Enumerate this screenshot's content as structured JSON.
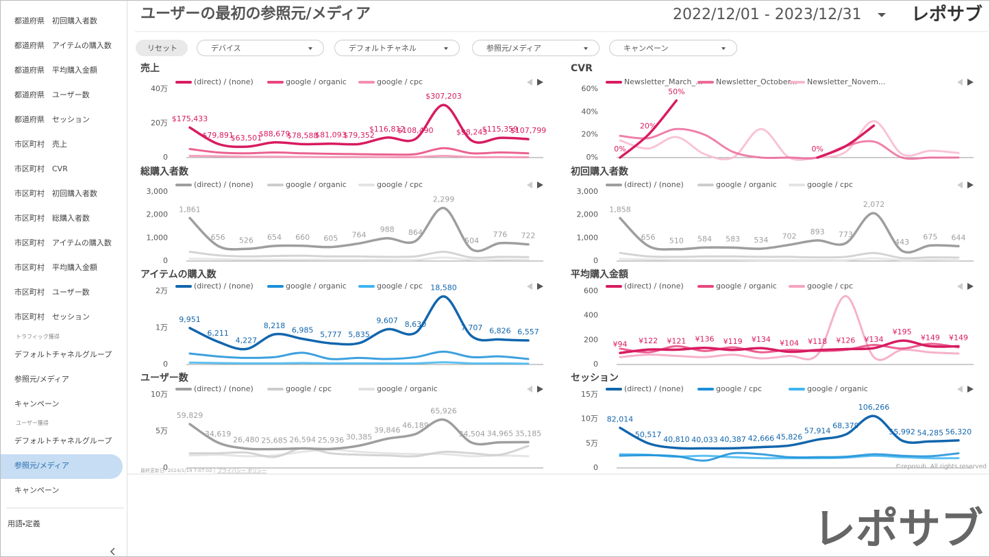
{
  "header": {
    "title": "ユーザーの最初の参照元/メディア",
    "date_range": "2022/12/01 - 2023/12/31",
    "logo": "レポサブ"
  },
  "sidebar": {
    "items": [
      "都道府県　初回購入者数",
      "都道府県　アイテムの購入数",
      "都道府県　平均購入金額",
      "都道府県　ユーザー数",
      "都道府県　セッション",
      "市区町村　売上",
      "市区町村　CVR",
      "市区町村　初回購入者数",
      "市区町村　総購入者数",
      "市区町村　アイテムの購入数",
      "市区町村　平均購入金額",
      "市区町村　ユーザー数",
      "市区町村　セッション"
    ],
    "sections": [
      {
        "title": "トラフィック獲得",
        "items": [
          "デフォルトチャネルグループ",
          "参照元/メディア",
          "キャンペーン"
        ]
      },
      {
        "title": "ユーザー獲得",
        "items": [
          "デフォルトチャネルグループ",
          "参照元/メディア",
          "キャンペーン"
        ]
      }
    ],
    "footer": "用語・定義"
  },
  "filters": {
    "reset": "リセット",
    "dropdowns": [
      "デバイス",
      "デフォルトチャネル",
      "参照元/メディア",
      "キャンペーン"
    ]
  },
  "chart_data": [
    {
      "type": "line",
      "title": "売上",
      "ylim": [
        0,
        400000
      ],
      "yticks": [
        0,
        {
          "value": 200000,
          "label": "20万"
        },
        {
          "value": 400000,
          "label": "40万"
        }
      ],
      "grid": false,
      "series": [
        {
          "name": "(direct) / (none)",
          "color": "#d81b60",
          "values": [
            175433,
            79891,
            63501,
            88679,
            78588,
            81093,
            79352,
            116812,
            108490,
            307203,
            98243,
            115359,
            107799
          ],
          "value_labels": [
            "$175,433",
            "$79,891",
            "$63,501",
            "$88,679",
            "$78,588",
            "$81,093",
            "$79,352",
            "$116,812",
            "$108,490",
            "$307,203",
            "$98,243",
            "$115,359",
            "$107,799"
          ]
        },
        {
          "name": "google / organic",
          "color": "#e8457f",
          "values": [
            50000,
            30000,
            25000,
            30000,
            25000,
            22000,
            20000,
            18000,
            20000,
            55000,
            25000,
            30000,
            25000
          ]
        },
        {
          "name": "google / cpc",
          "color": "#f48fb1",
          "values": [
            10000,
            8000,
            5000,
            5000,
            4000,
            3000,
            3000,
            3000,
            3000,
            10000,
            3000,
            3000,
            2000
          ]
        }
      ]
    },
    {
      "type": "line",
      "title": "CVR",
      "ylim": [
        0,
        60
      ],
      "yticks": [
        {
          "value": 0,
          "label": "0%"
        },
        {
          "value": 20,
          "label": "20%"
        },
        {
          "value": 40,
          "label": "40%"
        },
        {
          "value": 60,
          "label": "60%"
        }
      ],
      "grid": false,
      "series": [
        {
          "name": "Newsletter_March_...",
          "color": "#d81b60",
          "values": [
            0,
            20,
            50,
            null,
            null,
            null,
            null,
            0,
            10,
            28,
            null,
            null,
            null
          ],
          "value_labels": [
            "0%",
            "20%",
            "50%",
            null,
            null,
            null,
            null,
            "0%",
            null,
            null,
            null,
            null,
            null
          ]
        },
        {
          "name": "Newsletter_October...",
          "color": "#ec6a9a",
          "values": [
            19,
            17,
            25,
            20,
            5,
            0,
            0,
            0,
            10,
            14,
            0,
            0,
            0
          ]
        },
        {
          "name": "Newsletter_Novem...",
          "color": "#f8b8cf",
          "values": [
            15,
            8,
            18,
            3,
            0,
            25,
            0,
            0,
            5,
            32,
            3,
            6,
            4
          ]
        }
      ]
    },
    {
      "type": "line",
      "title": "総購入者数",
      "ylim": [
        0,
        3000
      ],
      "yticks": [
        0,
        {
          "value": 1000,
          "label": "1,000"
        },
        {
          "value": 2000,
          "label": "2,000"
        },
        {
          "value": 3000,
          "label": "3,000"
        }
      ],
      "grid": false,
      "series": [
        {
          "name": "(direct) / (none)",
          "color": "#9e9e9e",
          "values": [
            1861,
            656,
            526,
            654,
            660,
            605,
            764,
            988,
            864,
            2299,
            504,
            776,
            722
          ],
          "value_labels": [
            "1,861",
            "656",
            "526",
            "654",
            "660",
            "605",
            "764",
            "988",
            "864",
            "2,299",
            "504",
            "776",
            "722"
          ]
        },
        {
          "name": "google / organic",
          "color": "#cccccc",
          "values": [
            400,
            250,
            200,
            220,
            230,
            200,
            200,
            180,
            200,
            400,
            150,
            180,
            170
          ]
        },
        {
          "name": "google / cpc",
          "color": "#e3e3e3",
          "values": [
            100,
            80,
            60,
            60,
            60,
            50,
            50,
            50,
            50,
            150,
            50,
            60,
            50
          ]
        }
      ]
    },
    {
      "type": "line",
      "title": "初回購入者数",
      "ylim": [
        0,
        3000
      ],
      "yticks": [
        0,
        {
          "value": 1000,
          "label": "1,000"
        },
        {
          "value": 2000,
          "label": "2,000"
        },
        {
          "value": 3000,
          "label": "3,000"
        }
      ],
      "grid": false,
      "series": [
        {
          "name": "(direct) / (none)",
          "color": "#9e9e9e",
          "values": [
            1858,
            656,
            510,
            584,
            583,
            534,
            702,
            893,
            773,
            2072,
            443,
            675,
            644
          ],
          "value_labels": [
            "1,858",
            "656",
            "510",
            "584",
            "583",
            "534",
            "702",
            "893",
            "773",
            "2,072",
            "443",
            "675",
            "644"
          ]
        },
        {
          "name": "google / organic",
          "color": "#cccccc",
          "values": [
            350,
            200,
            180,
            200,
            200,
            180,
            180,
            160,
            180,
            350,
            130,
            160,
            150
          ]
        },
        {
          "name": "google / cpc",
          "color": "#e3e3e3",
          "values": [
            90,
            70,
            50,
            50,
            50,
            40,
            40,
            40,
            40,
            120,
            40,
            50,
            40
          ]
        }
      ]
    },
    {
      "type": "line",
      "title": "アイテムの購入数",
      "ylim": [
        0,
        20000
      ],
      "yticks": [
        0,
        {
          "value": 10000,
          "label": "1万"
        },
        {
          "value": 20000,
          "label": "2万"
        }
      ],
      "grid": false,
      "series": [
        {
          "name": "(direct) / (none)",
          "color": "#1266ad",
          "values": [
            9951,
            6211,
            4227,
            8218,
            6985,
            5777,
            5835,
            9607,
            8630,
            18580,
            7707,
            6826,
            6557
          ],
          "value_labels": [
            "9,951",
            "6,211",
            "4,227",
            "8,218",
            "6,985",
            "5,777",
            "5,835",
            "9,607",
            "8,630",
            "18,580",
            "7,707",
            "6,826",
            "6,557"
          ]
        },
        {
          "name": "google / organic",
          "color": "#1a8fd8",
          "values": [
            3000,
            2200,
            1800,
            2000,
            3200,
            1500,
            1800,
            1500,
            2000,
            3500,
            2000,
            2200,
            1500
          ]
        },
        {
          "name": "google / cpc",
          "color": "#3fb5f0",
          "values": [
            500,
            400,
            300,
            300,
            400,
            300,
            300,
            300,
            300,
            600,
            300,
            300,
            200
          ]
        }
      ]
    },
    {
      "type": "line",
      "title": "平均購入金額",
      "ylim": [
        0,
        600
      ],
      "yticks": [
        0,
        200,
        400,
        600
      ],
      "grid": false,
      "series": [
        {
          "name": "(direct) / (none)",
          "color": "#d81b60",
          "values": [
            94,
            122,
            121,
            136,
            119,
            134,
            104,
            118,
            126,
            134,
            195,
            149,
            149
          ],
          "value_labels": [
            "¥94",
            "¥122",
            "¥121",
            "¥136",
            "¥119",
            "¥134",
            "¥104",
            "¥118",
            "¥126",
            "¥134",
            "¥195",
            "¥149",
            "¥149"
          ]
        },
        {
          "name": "google / organic",
          "color": "#e8457f",
          "values": [
            130,
            100,
            150,
            110,
            140,
            100,
            120,
            110,
            120,
            160,
            130,
            170,
            140
          ]
        },
        {
          "name": "google / cpc",
          "color": "#f5a3c2",
          "values": [
            60,
            80,
            70,
            60,
            80,
            50,
            70,
            80,
            560,
            60,
            120,
            100,
            90
          ]
        }
      ]
    },
    {
      "type": "line",
      "title": "ユーザー数",
      "ylim": [
        0,
        100000
      ],
      "yticks": [
        0,
        {
          "value": 50000,
          "label": "5万"
        },
        {
          "value": 100000,
          "label": "10万"
        }
      ],
      "grid": false,
      "series": [
        {
          "name": "(direct) / (none)",
          "color": "#9e9e9e",
          "values": [
            59829,
            34619,
            26480,
            25685,
            26594,
            25936,
            30385,
            39846,
            46189,
            65926,
            34504,
            34965,
            35185
          ],
          "value_labels": [
            "59,829",
            "34,619",
            "26,480",
            "25,685",
            "26,594",
            "25,936",
            "30,385",
            "39,846",
            "46,189",
            "65,926",
            "34,504",
            "34,965",
            "35,185"
          ]
        },
        {
          "name": "google / cpc",
          "color": "#cccccc",
          "values": [
            20000,
            20000,
            21000,
            15000,
            27000,
            20000,
            18000,
            17000,
            16000,
            22000,
            20000,
            18000,
            30000
          ]
        },
        {
          "name": "google / organic",
          "color": "#e0e0e0",
          "values": [
            17000,
            18000,
            16000,
            17000,
            22000,
            25000,
            22000,
            20000,
            19000,
            19000,
            16000,
            17000,
            16000
          ]
        }
      ]
    },
    {
      "type": "line",
      "title": "セッション",
      "ylim": [
        0,
        150000
      ],
      "yticks": [
        0,
        {
          "value": 50000,
          "label": "5万"
        },
        {
          "value": 100000,
          "label": "10万"
        },
        {
          "value": 150000,
          "label": "15万"
        }
      ],
      "grid": false,
      "series": [
        {
          "name": "(direct) / (none)",
          "color": "#1266ad",
          "values": [
            82014,
            50517,
            40810,
            40033,
            40387,
            42666,
            45826,
            57914,
            68379,
            106266,
            55992,
            54285,
            56320
          ],
          "value_labels": [
            "82,014",
            "50,517",
            "40,810",
            "40,033",
            "40,387",
            "42,666",
            "45,826",
            "57,914",
            "68,379",
            "106,266",
            "55,992",
            "54,285",
            "56,320"
          ]
        },
        {
          "name": "google / cpc",
          "color": "#1a8fd8",
          "values": [
            25000,
            26000,
            24000,
            15000,
            30000,
            28000,
            22000,
            22000,
            23000,
            28000,
            25000,
            24000,
            30000
          ]
        },
        {
          "name": "google / organic",
          "color": "#3fb5f0",
          "values": [
            28000,
            27000,
            23000,
            25000,
            22000,
            20000,
            20000,
            20000,
            21000,
            25000,
            22000,
            20000,
            20000
          ]
        }
      ]
    }
  ],
  "footer": {
    "updated": "最終更新日: 2024/1/19 7:07:02 |",
    "privacy": "プライバシー ポリシー",
    "copyright": "©reposub. All rights reserved",
    "logo": "レポサブ"
  }
}
